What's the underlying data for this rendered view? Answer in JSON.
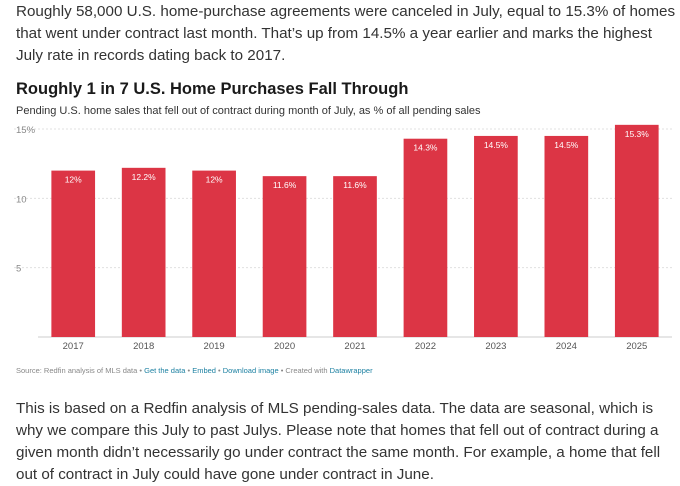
{
  "article": {
    "intro": "Roughly 58,000 U.S. home-purchase agreements were canceled in July, equal to 15.3% of homes that went under contract last month. That’s up from 14.5% a year earlier and marks the highest July rate in records dating back to 2017.",
    "outro": "This is based on a Redfin analysis of MLS pending-sales data. The data are seasonal, which is why we compare this July to past Julys. Please note that homes that fell out of contract during a given month didn’t necessarily go under contract the same month. For example, a home that fell out of contract in July could have gone under contract in June."
  },
  "footer": {
    "source": "Source: Redfin analysis of MLS data",
    "sep1": " • ",
    "get_data": "Get the data",
    "sep2": " • ",
    "embed": "Embed",
    "sep3": " • ",
    "download": "Download image",
    "sep4": " • Created with ",
    "datawrapper": "Datawrapper"
  },
  "colors": {
    "bar": "#dc3545",
    "grid": "#e0e0e0",
    "link": "#1d81a2"
  },
  "chart_data": {
    "type": "bar",
    "title": "Roughly 1 in 7 U.S. Home Purchases Fall Through",
    "subtitle": "Pending U.S. home sales that fell out of contract during month of July, as % of all pending sales",
    "categories": [
      "2017",
      "2018",
      "2019",
      "2020",
      "2021",
      "2022",
      "2023",
      "2024",
      "2025"
    ],
    "values": [
      12,
      12.2,
      12,
      11.6,
      11.6,
      14.3,
      14.5,
      14.5,
      15.3
    ],
    "value_labels": [
      "12%",
      "12.2%",
      "12%",
      "11.6%",
      "11.6%",
      "14.3%",
      "14.5%",
      "14.5%",
      "15.3%"
    ],
    "y_ticks": [
      5,
      10,
      15
    ],
    "y_tick_labels": [
      "5",
      "10",
      "15%"
    ],
    "ylim": [
      0,
      15
    ],
    "grid": true,
    "xlabel": "",
    "ylabel": ""
  }
}
